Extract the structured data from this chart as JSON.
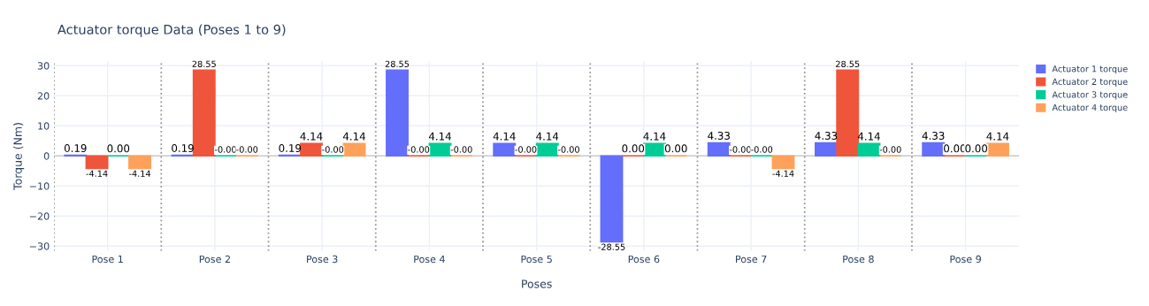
{
  "chart_data": {
    "type": "bar",
    "title": "Actuator torque Data (Poses 1 to 9)",
    "xlabel": "Poses",
    "ylabel": "Torque (Nm)",
    "categories": [
      "Pose 1",
      "Pose 2",
      "Pose 3",
      "Pose 4",
      "Pose 5",
      "Pose 6",
      "Pose 7",
      "Pose 8",
      "Pose 9"
    ],
    "series": [
      {
        "name": "Actuator 1 torque",
        "color": "#636efa",
        "values": [
          0.19,
          0.19,
          0.19,
          28.55,
          4.14,
          -28.55,
          4.33,
          4.33,
          4.33
        ],
        "value_labels": [
          "0.19",
          "0.19",
          "0.19",
          "28.55",
          "4.14",
          "-28.55",
          "4.33",
          "4.33",
          "4.33"
        ]
      },
      {
        "name": "Actuator 2 torque",
        "color": "#ef553b",
        "values": [
          -4.14,
          28.55,
          4.14,
          0,
          0,
          0,
          0,
          28.55,
          0
        ],
        "value_labels": [
          "-4.14",
          "28.55",
          "4.14",
          "-0.00",
          "-0.00",
          "0.00",
          "-0.00",
          "28.55",
          "0.00"
        ]
      },
      {
        "name": "Actuator 3 torque",
        "color": "#00cc96",
        "values": [
          0,
          0,
          0,
          4.14,
          4.14,
          4.14,
          0,
          4.14,
          0
        ],
        "value_labels": [
          "0.00",
          "-0.00",
          "-0.00",
          "4.14",
          "4.14",
          "4.14",
          "-0.00",
          "4.14",
          "0.00"
        ]
      },
      {
        "name": "Actuator 4 torque",
        "color": "#ffa15a",
        "values": [
          -4.14,
          0,
          4.14,
          0,
          0,
          0,
          -4.14,
          0,
          4.14
        ],
        "value_labels": [
          "-4.14",
          "-0.00",
          "4.14",
          "-0.00",
          "-0.00",
          "0.00",
          "-4.14",
          "-0.00",
          "4.14"
        ]
      }
    ],
    "ylim": [
      -31.6,
      31.5
    ],
    "yticks": [
      {
        "value": -30,
        "label": "−30"
      },
      {
        "value": -20,
        "label": "−20"
      },
      {
        "value": -10,
        "label": "−10"
      },
      0,
      10,
      20,
      30
    ],
    "grid": true,
    "legend": "top right"
  }
}
